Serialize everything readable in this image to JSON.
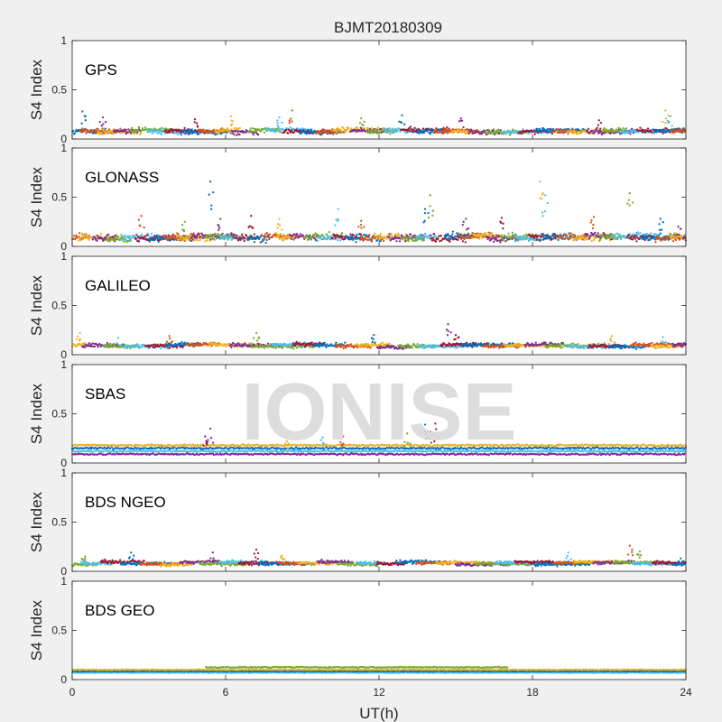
{
  "figure": {
    "title": "BJMT20180309",
    "xlabel": "UT(h)",
    "watermark": "IONISE",
    "xticks": [
      "0",
      "6",
      "12",
      "18",
      "24"
    ],
    "yticks": [
      "0",
      "0.5",
      "1"
    ]
  },
  "colors": {
    "figure_bg": "#f0f0f0",
    "axes_bg": "#ffffff",
    "axis_line": "#262626",
    "watermark": "#d9d9d9",
    "series": [
      "#0072BD",
      "#D95319",
      "#EDB120",
      "#7E2F8E",
      "#77AC30",
      "#4DBEEE",
      "#A2142F"
    ]
  },
  "chart_data": [
    {
      "type": "scatter",
      "panel_label": "GPS",
      "ylabel": "S4 Index",
      "xlim": [
        0,
        24
      ],
      "ylim": [
        0,
        1
      ],
      "base_level": 0.08,
      "spread": 0.035,
      "segment_hours": 1.2,
      "spikes": [
        {
          "x": 0.4,
          "y": 0.28
        },
        {
          "x": 1.2,
          "y": 0.22
        },
        {
          "x": 4.8,
          "y": 0.2
        },
        {
          "x": 6.2,
          "y": 0.23
        },
        {
          "x": 8.1,
          "y": 0.22
        },
        {
          "x": 8.6,
          "y": 0.29
        },
        {
          "x": 11.3,
          "y": 0.21
        },
        {
          "x": 12.9,
          "y": 0.24
        },
        {
          "x": 15.2,
          "y": 0.21
        },
        {
          "x": 20.6,
          "y": 0.19
        },
        {
          "x": 23.2,
          "y": 0.29
        },
        {
          "x": 23.4,
          "y": 0.23
        }
      ]
    },
    {
      "type": "scatter",
      "panel_label": "GLONASS",
      "ylabel": "S4 Index",
      "xlim": [
        0,
        24
      ],
      "ylim": [
        0,
        1
      ],
      "base_level": 0.09,
      "spread": 0.05,
      "segment_hours": 1.0,
      "spikes": [
        {
          "x": 2.7,
          "y": 0.31
        },
        {
          "x": 4.4,
          "y": 0.25
        },
        {
          "x": 5.4,
          "y": 0.66
        },
        {
          "x": 5.8,
          "y": 0.28
        },
        {
          "x": 7.0,
          "y": 0.31
        },
        {
          "x": 8.1,
          "y": 0.28
        },
        {
          "x": 10.4,
          "y": 0.38
        },
        {
          "x": 11.3,
          "y": 0.26
        },
        {
          "x": 14.0,
          "y": 0.52
        },
        {
          "x": 13.8,
          "y": 0.38
        },
        {
          "x": 15.4,
          "y": 0.28
        },
        {
          "x": 16.8,
          "y": 0.29
        },
        {
          "x": 18.3,
          "y": 0.66
        },
        {
          "x": 18.5,
          "y": 0.52
        },
        {
          "x": 20.4,
          "y": 0.3
        },
        {
          "x": 21.8,
          "y": 0.54
        },
        {
          "x": 23.0,
          "y": 0.28
        },
        {
          "x": 23.7,
          "y": 0.2
        }
      ]
    },
    {
      "type": "scatter",
      "panel_label": "GALILEO",
      "ylabel": "S4 Index",
      "xlim": [
        0,
        24
      ],
      "ylim": [
        0,
        1
      ],
      "base_level": 0.09,
      "spread": 0.03,
      "segment_hours": 1.5,
      "spikes": [
        {
          "x": 0.3,
          "y": 0.22
        },
        {
          "x": 1.8,
          "y": 0.17
        },
        {
          "x": 3.8,
          "y": 0.19
        },
        {
          "x": 7.2,
          "y": 0.22
        },
        {
          "x": 11.8,
          "y": 0.2
        },
        {
          "x": 14.7,
          "y": 0.31
        },
        {
          "x": 15.0,
          "y": 0.2
        },
        {
          "x": 21.1,
          "y": 0.19
        },
        {
          "x": 23.1,
          "y": 0.18
        }
      ]
    },
    {
      "type": "scatter",
      "panel_label": "SBAS",
      "ylabel": "S4 Index",
      "xlim": [
        0,
        24
      ],
      "ylim": [
        0,
        1
      ],
      "band_series": [
        {
          "level": 0.09,
          "spread": 0.012
        },
        {
          "level": 0.12,
          "spread": 0.012
        },
        {
          "level": 0.15,
          "spread": 0.014
        },
        {
          "level": 0.18,
          "spread": 0.014
        }
      ],
      "spikes": [
        {
          "x": 5.4,
          "y": 0.35
        },
        {
          "x": 5.2,
          "y": 0.27
        },
        {
          "x": 8.4,
          "y": 0.22
        },
        {
          "x": 9.8,
          "y": 0.26
        },
        {
          "x": 10.6,
          "y": 0.27
        },
        {
          "x": 13.1,
          "y": 0.3
        },
        {
          "x": 13.8,
          "y": 0.39
        },
        {
          "x": 14.0,
          "y": 0.32
        },
        {
          "x": 14.2,
          "y": 0.4
        }
      ]
    },
    {
      "type": "scatter",
      "panel_label": "BDS NGEO",
      "ylabel": "S4 Index",
      "xlim": [
        0,
        24
      ],
      "ylim": [
        0,
        1
      ],
      "base_level": 0.08,
      "spread": 0.025,
      "segment_hours": 1.4,
      "spikes": [
        {
          "x": 0.5,
          "y": 0.15
        },
        {
          "x": 2.3,
          "y": 0.19
        },
        {
          "x": 5.5,
          "y": 0.19
        },
        {
          "x": 7.2,
          "y": 0.22
        },
        {
          "x": 8.2,
          "y": 0.16
        },
        {
          "x": 19.4,
          "y": 0.19
        },
        {
          "x": 21.8,
          "y": 0.26
        },
        {
          "x": 22.2,
          "y": 0.2
        },
        {
          "x": 23.8,
          "y": 0.13
        }
      ]
    },
    {
      "type": "scatter",
      "panel_label": "BDS GEO",
      "ylabel": "S4 Index",
      "xlim": [
        0,
        24
      ],
      "ylim": [
        0,
        1
      ],
      "band_series": [
        {
          "level": 0.07,
          "spread": 0.006
        },
        {
          "level": 0.085,
          "spread": 0.006
        },
        {
          "level": 0.1,
          "spread": 0.006
        },
        {
          "level": 0.125,
          "spread": 0.008,
          "x_range": [
            5.2,
            17
          ]
        }
      ],
      "spikes": []
    }
  ]
}
